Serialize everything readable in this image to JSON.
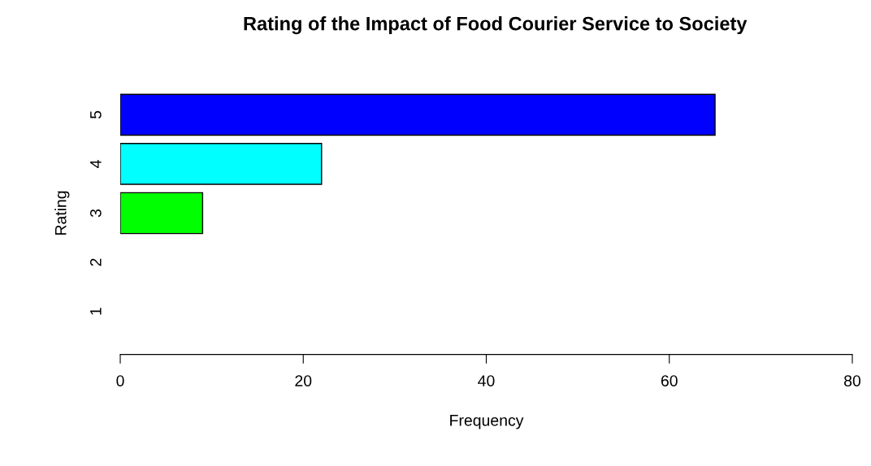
{
  "chart_data": {
    "type": "bar",
    "orientation": "horizontal",
    "title": "Rating of the Impact of Food Courier Service to Society",
    "xlabel": "Frequency",
    "ylabel": "Rating",
    "categories": [
      "5",
      "4",
      "3",
      "2",
      "1"
    ],
    "values": [
      65,
      22,
      9,
      0,
      0
    ],
    "colors": [
      "#0000ff",
      "#00ffff",
      "#00ff00",
      null,
      null
    ],
    "xlim": [
      0,
      80
    ],
    "xticks": [
      0,
      20,
      40,
      60,
      80
    ],
    "grid": false,
    "legend": false
  }
}
